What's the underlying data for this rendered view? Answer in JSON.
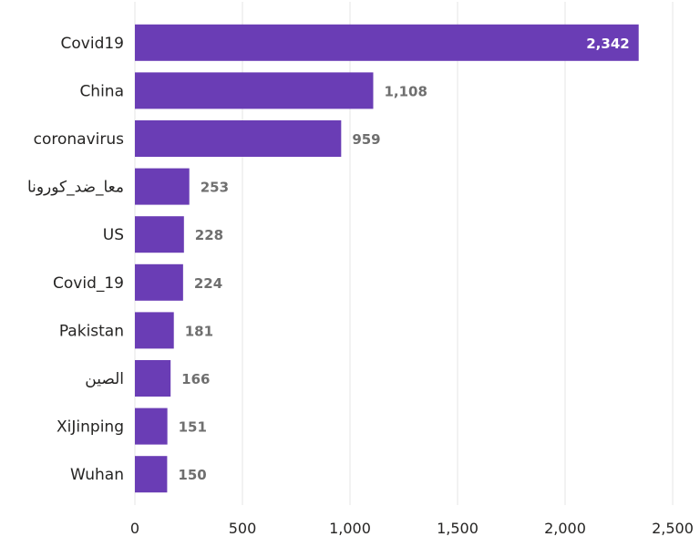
{
  "chart_data": {
    "type": "bar",
    "orientation": "horizontal",
    "categories": [
      "Covid19",
      "China",
      "coronavirus",
      "معا_ضد_كورونا",
      "US",
      "Covid_19",
      "Pakistan",
      "الصين",
      "XiJinping",
      "Wuhan"
    ],
    "values": [
      2342,
      1108,
      959,
      253,
      228,
      224,
      181,
      166,
      151,
      150
    ],
    "value_labels": [
      "2,342",
      "1,108",
      "959",
      "253",
      "228",
      "224",
      "181",
      "166",
      "151",
      "150"
    ],
    "title": "",
    "xlabel": "",
    "ylabel": "",
    "xlim": [
      0,
      2500
    ],
    "xticks": [
      0,
      500,
      1000,
      1500,
      2000,
      2500
    ],
    "xtick_labels": [
      "0",
      "500",
      "1,000",
      "1,500",
      "2,000",
      "2,500"
    ],
    "grid": true,
    "legend": "none",
    "bar_color": "#6a3db5"
  }
}
